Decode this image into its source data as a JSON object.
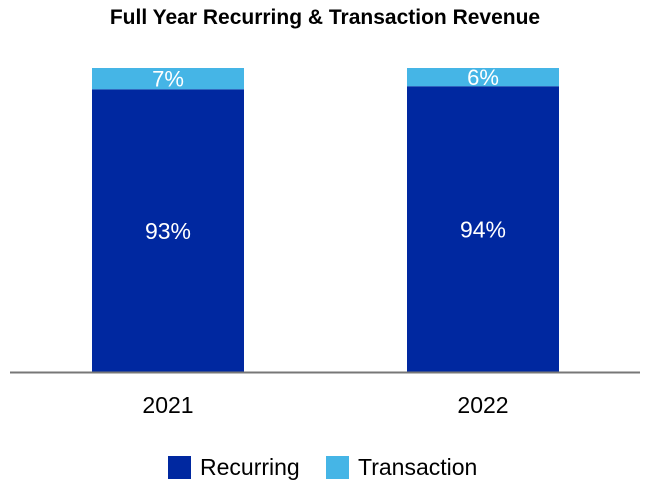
{
  "chart_data": {
    "type": "bar",
    "stacked": true,
    "title": "Full Year Recurring & Transaction Revenue",
    "categories": [
      "2021",
      "2022"
    ],
    "series": [
      {
        "name": "Recurring",
        "values": [
          93,
          94
        ],
        "labels": [
          "93%",
          "94%"
        ],
        "color": "#0028a0"
      },
      {
        "name": "Transaction",
        "values": [
          7,
          6
        ],
        "labels": [
          "7%",
          "6%"
        ],
        "color": "#45b5e6"
      }
    ],
    "ylim": [
      0,
      100
    ],
    "grid": false,
    "legend": "bottom"
  }
}
